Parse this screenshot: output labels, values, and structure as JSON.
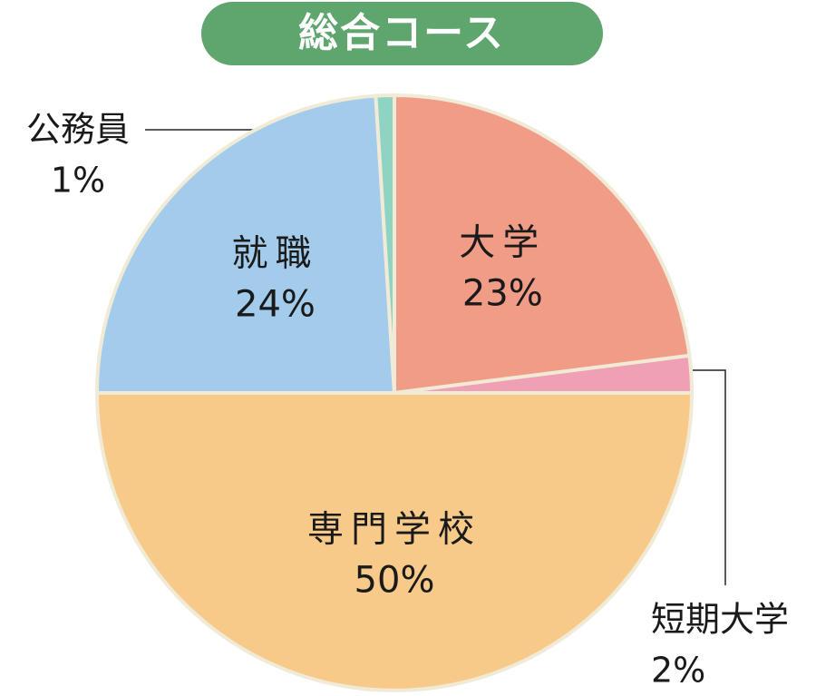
{
  "chart_data": {
    "type": "pie",
    "title": "総合コース",
    "categories": [
      "大学",
      "短期大学",
      "専門学校",
      "就職",
      "公務員"
    ],
    "values": [
      23,
      2,
      50,
      24,
      1
    ],
    "value_labels": [
      "23%",
      "2%",
      "50%",
      "24%",
      "1%"
    ],
    "colors": [
      "#f09c87",
      "#f0a0b4",
      "#f8ca8a",
      "#a2cbec",
      "#8fd3c3"
    ]
  }
}
